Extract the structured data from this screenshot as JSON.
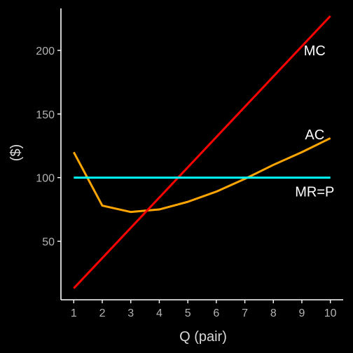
{
  "chart_data": {
    "type": "line",
    "title": "",
    "xlabel": "Q (pair)",
    "ylabel": "($)",
    "xlim": [
      0.55,
      10.45
    ],
    "ylim": [
      4,
      233
    ],
    "x_ticks": [
      1,
      2,
      3,
      4,
      5,
      6,
      7,
      8,
      9,
      10
    ],
    "y_ticks": [
      50,
      100,
      150,
      200
    ],
    "grid": false,
    "legend": "none",
    "series": [
      {
        "name": "MC",
        "color": "#ff0000",
        "x": [
          1,
          10
        ],
        "y": [
          13,
          227
        ]
      },
      {
        "name": "AC",
        "color": "#ffa500",
        "x": [
          1,
          2,
          3,
          4,
          5,
          6,
          7,
          8,
          9,
          10
        ],
        "y": [
          120,
          78,
          73,
          75,
          81,
          89,
          99,
          110,
          120,
          131
        ]
      },
      {
        "name": "MR=P",
        "color": "#00ffff",
        "x": [
          1,
          10
        ],
        "y": [
          100,
          100
        ]
      }
    ],
    "annotations": [
      {
        "text": "MC",
        "x": 9.45,
        "y": 200
      },
      {
        "text": "AC",
        "x": 9.45,
        "y": 134
      },
      {
        "text": "MR=P",
        "x": 9.45,
        "y": 89
      }
    ]
  }
}
